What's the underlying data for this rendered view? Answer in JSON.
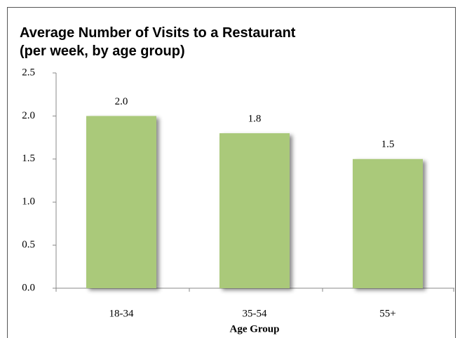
{
  "chart_data": {
    "type": "bar",
    "title": "Average Number of Visits to a Restaurant",
    "subtitle": "(per week, by age group)",
    "x_label": "Age Group",
    "categories": [
      "18-34",
      "35-54",
      "55+"
    ],
    "values": [
      2.0,
      1.8,
      1.5
    ],
    "value_labels": [
      "2.0",
      "1.8",
      "1.5"
    ],
    "color": "#aac97a",
    "ylim": [
      0,
      2.5
    ],
    "yticks": [
      {
        "value": 0,
        "label": "0.0"
      },
      0.5,
      {
        "value": 1,
        "label": "1.0"
      },
      1.5,
      {
        "value": 2,
        "label": "2.0"
      },
      2.5
    ],
    "grid": false
  }
}
